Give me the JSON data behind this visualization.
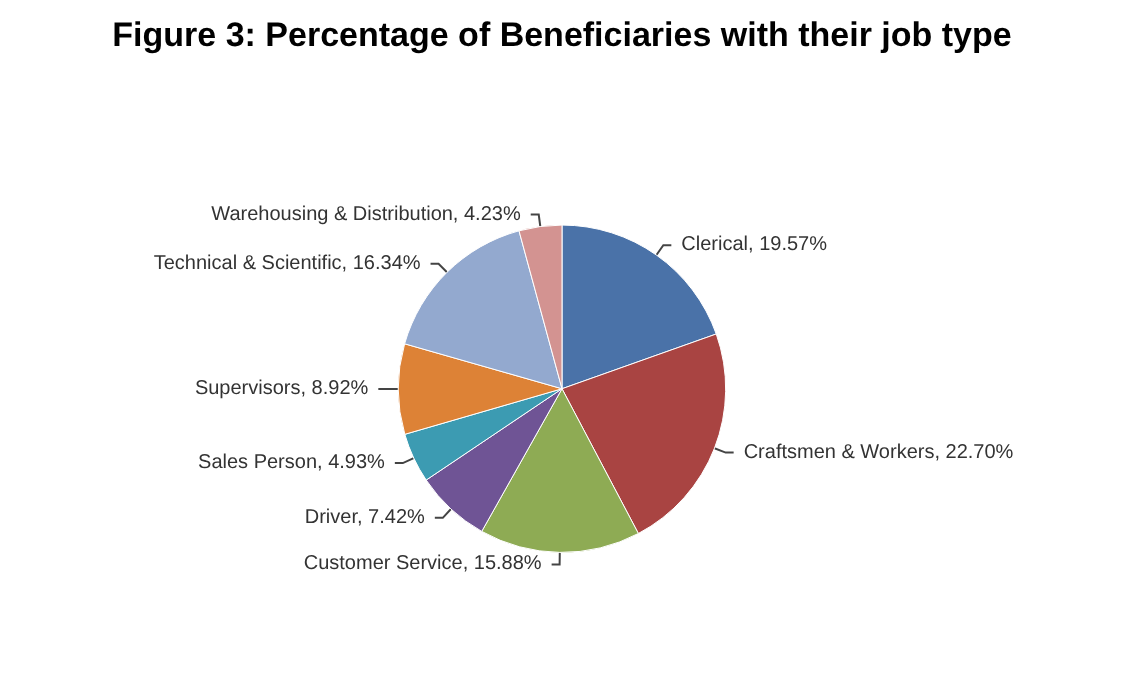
{
  "chart_data": {
    "type": "pie",
    "title": "Figure 3: Percentage of Beneficiaries with their job type",
    "categories": [
      "Clerical",
      "Craftsmen & Workers",
      "Customer Service",
      "Driver",
      "Sales Person",
      "Supervisors",
      "Technical & Scientific",
      "Warehousing & Distribution"
    ],
    "values": [
      19.57,
      22.7,
      15.88,
      7.42,
      4.93,
      8.92,
      16.34,
      4.23
    ],
    "value_labels": [
      "19.57%",
      "22.70%",
      "15.88%",
      "7.42%",
      "4.93%",
      "8.92%",
      "16.34%",
      "4.23%"
    ],
    "colors": [
      "#4a72a8",
      "#a94442",
      "#8eab54",
      "#6f5495",
      "#3c9bb2",
      "#dd8236",
      "#93a9cf",
      "#d39391"
    ],
    "legend": false
  }
}
